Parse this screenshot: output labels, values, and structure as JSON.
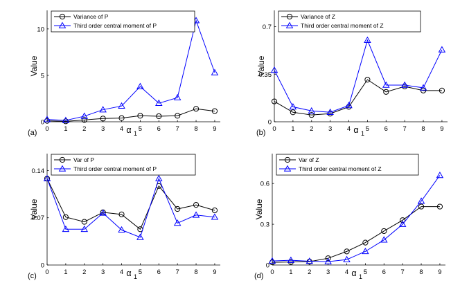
{
  "chart_data": [
    {
      "panel": "(a)",
      "type": "line",
      "xlabel": "α",
      "xlabel_sub": "1",
      "ylabel": "Value",
      "x": [
        0,
        1,
        2,
        3,
        4,
        5,
        6,
        7,
        8,
        9
      ],
      "xlim": [
        0,
        9.3
      ],
      "ylim": [
        0,
        12
      ],
      "xticks": [
        "0",
        "1",
        "2",
        "3",
        "4",
        "5",
        "6",
        "7",
        "8",
        "9"
      ],
      "yticks": [
        0,
        5,
        10
      ],
      "ytick_labels": [
        "0",
        "5",
        "10"
      ],
      "legend_position": "top-left",
      "series": [
        {
          "name": "Variance of P",
          "color": "#000000",
          "marker": "circle",
          "values": [
            0.1,
            0.05,
            0.2,
            0.35,
            0.4,
            0.65,
            0.6,
            0.65,
            1.4,
            1.15
          ]
        },
        {
          "name": "Third order central moment of P",
          "color": "#0000ff",
          "marker": "triangle",
          "values": [
            0.25,
            0.15,
            0.6,
            1.3,
            1.7,
            3.8,
            2.0,
            2.6,
            10.9,
            5.3
          ]
        }
      ]
    },
    {
      "panel": "(b)",
      "type": "line",
      "xlabel": "α",
      "xlabel_sub": "1",
      "ylabel": "Value",
      "x": [
        0,
        1,
        2,
        3,
        4,
        5,
        6,
        7,
        8,
        9
      ],
      "xlim": [
        0,
        9.3
      ],
      "ylim": [
        0,
        0.82
      ],
      "xticks": [
        "0",
        "1",
        "2",
        "3",
        "4",
        "5",
        "6",
        "7",
        "8",
        "9"
      ],
      "yticks": [
        0,
        0.35,
        0.7
      ],
      "ytick_labels": [
        "0",
        "0.35",
        "0.7"
      ],
      "legend_position": "top-left",
      "series": [
        {
          "name": "Variance of Z",
          "color": "#000000",
          "marker": "circle",
          "values": [
            0.15,
            0.07,
            0.05,
            0.06,
            0.11,
            0.31,
            0.22,
            0.26,
            0.23,
            0.23
          ]
        },
        {
          "name": "Third order central moment of Z",
          "color": "#0000ff",
          "marker": "triangle",
          "values": [
            0.38,
            0.11,
            0.08,
            0.07,
            0.12,
            0.6,
            0.27,
            0.27,
            0.25,
            0.53
          ]
        }
      ]
    },
    {
      "panel": "(c)",
      "type": "line",
      "xlabel": "α",
      "xlabel_sub": "1",
      "ylabel": "Value",
      "x": [
        0,
        1,
        2,
        3,
        4,
        5,
        6,
        7,
        8,
        9
      ],
      "xlim": [
        0,
        9.3
      ],
      "ylim": [
        0,
        0.165
      ],
      "xticks": [
        "0",
        "1",
        "2",
        "3",
        "4",
        "5",
        "6",
        "7",
        "8",
        "9"
      ],
      "yticks": [
        0,
        0.07,
        0.14
      ],
      "ytick_labels": [
        "0",
        "0.07",
        "0.14"
      ],
      "legend_position": "top-left",
      "series": [
        {
          "name": "Var of P",
          "color": "#000000",
          "marker": "circle",
          "values": [
            0.128,
            0.071,
            0.064,
            0.078,
            0.075,
            0.053,
            0.117,
            0.083,
            0.089,
            0.081
          ]
        },
        {
          "name": "Third order central moment of P",
          "color": "#0000ff",
          "marker": "triangle",
          "values": [
            0.128,
            0.053,
            0.053,
            0.077,
            0.052,
            0.041,
            0.128,
            0.062,
            0.074,
            0.071
          ]
        }
      ]
    },
    {
      "panel": "(d)",
      "type": "line",
      "xlabel": "α",
      "xlabel_sub": "1",
      "ylabel": "Value",
      "x": [
        0,
        1,
        2,
        3,
        4,
        5,
        6,
        7,
        8,
        9
      ],
      "xlim": [
        0,
        9.3
      ],
      "ylim": [
        0,
        0.82
      ],
      "xticks": [
        "0",
        "1",
        "2",
        "3",
        "4",
        "5",
        "6",
        "7",
        "8",
        "9"
      ],
      "yticks": [
        0,
        0.3,
        0.6
      ],
      "ytick_labels": [
        "0",
        "0.3",
        "0.6"
      ],
      "legend_position": "top-left",
      "series": [
        {
          "name": "Var of Z",
          "color": "#000000",
          "marker": "circle",
          "values": [
            0.02,
            0.022,
            0.025,
            0.05,
            0.1,
            0.165,
            0.25,
            0.33,
            0.43,
            0.43
          ]
        },
        {
          "name": "Third order central moment of Z",
          "color": "#0000ff",
          "marker": "triangle",
          "values": [
            0.03,
            0.035,
            0.028,
            0.025,
            0.04,
            0.1,
            0.185,
            0.3,
            0.47,
            0.66
          ]
        }
      ]
    }
  ]
}
